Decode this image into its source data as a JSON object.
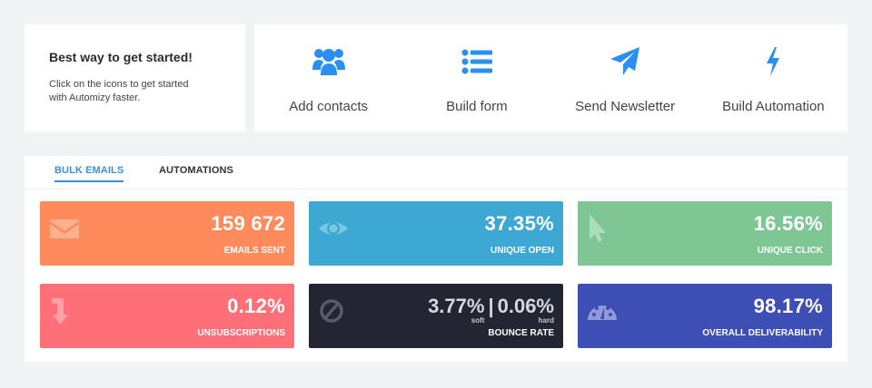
{
  "intro": {
    "title": "Best way to get started!",
    "text": "Click on the icons to get started with Automizy faster."
  },
  "actions": [
    {
      "label": "Add contacts",
      "icon": "users-icon"
    },
    {
      "label": "Build form",
      "icon": "list-icon"
    },
    {
      "label": "Send Newsletter",
      "icon": "paper-plane-icon"
    },
    {
      "label": "Build Automation",
      "icon": "lightning-icon"
    }
  ],
  "tabs": [
    {
      "label": "BULK EMAILS",
      "active": true
    },
    {
      "label": "AUTOMATIONS",
      "active": false
    }
  ],
  "stats": {
    "emails_sent": {
      "value": "159 672",
      "label": "EMAILS SENT",
      "color": "#ff8a5b",
      "icon": "envelope-icon"
    },
    "unique_open": {
      "value": "37.35%",
      "label": "UNIQUE OPEN",
      "color": "#3da8d3",
      "icon": "eye-icon"
    },
    "unique_click": {
      "value": "16.56%",
      "label": "UNIQUE CLICK",
      "color": "#7ec795",
      "icon": "cursor-icon"
    },
    "unsubscriptions": {
      "value": "0.12%",
      "label": "UNSUBSCRIPTIONS",
      "color": "#ff6f78",
      "icon": "arrow-down-icon"
    },
    "bounce_rate": {
      "soft_value": "3.77%",
      "separator": "|",
      "hard_value": "0.06%",
      "soft_label": "soft",
      "hard_label": "hard",
      "label": "BOUNCE RATE",
      "color": "#242532",
      "icon": "block-icon"
    },
    "deliverability": {
      "value": "98.17%",
      "label": "OVERALL DELIVERABILITY",
      "color": "#3d4fb4",
      "icon": "gauge-icon"
    }
  },
  "colors": {
    "accent": "#3a8fd9",
    "icon_blue": "#2b8ef2"
  }
}
